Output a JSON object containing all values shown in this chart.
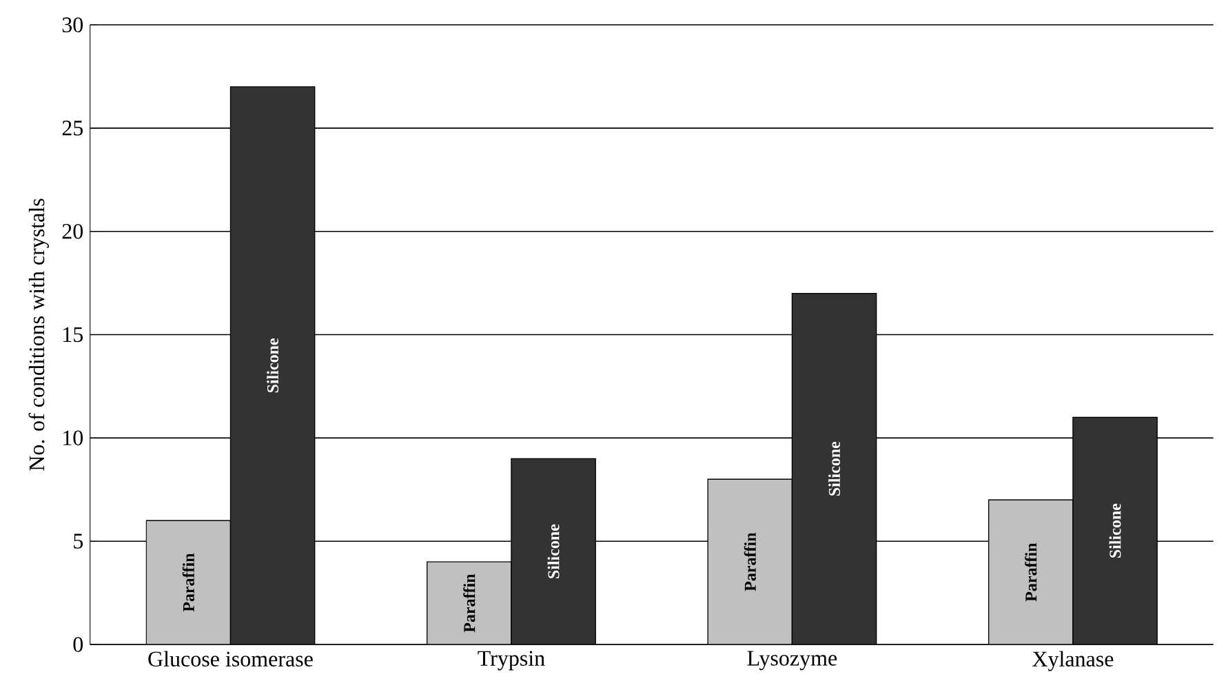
{
  "chart_data": {
    "type": "bar",
    "ylabel": "No. of conditions with crystals",
    "categories": [
      "Glucose isomerase",
      "Trypsin",
      "Lysozyme",
      "Xylanase"
    ],
    "series": [
      {
        "name": "Paraffin",
        "color": "#c0c0c0",
        "values": [
          6,
          4,
          8,
          7
        ]
      },
      {
        "name": "Silicone",
        "color": "#333333",
        "values": [
          27,
          9,
          17,
          11
        ]
      }
    ],
    "ylim": [
      0,
      30
    ],
    "yticks": [
      0,
      5,
      10,
      15,
      20,
      25,
      30
    ],
    "grid": "y"
  }
}
